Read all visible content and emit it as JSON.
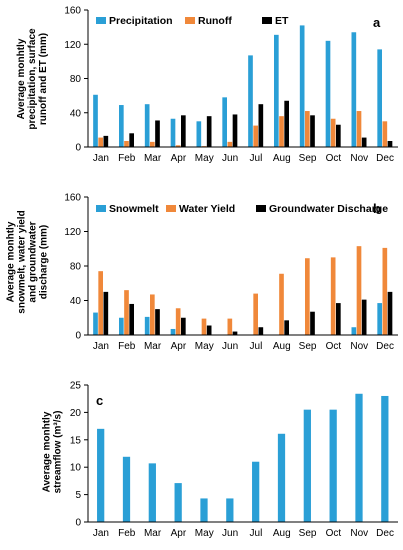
{
  "chart_data": [
    {
      "type": "bar",
      "panel_label": "a",
      "ylabel_lines": [
        "Average monhtly",
        "precipitation, surface",
        "runoff and ET (mm)"
      ],
      "categories": [
        "Jan",
        "Feb",
        "Mar",
        "Apr",
        "May",
        "Jun",
        "Jul",
        "Aug",
        "Sep",
        "Oct",
        "Nov",
        "Dec"
      ],
      "ylim": [
        0,
        160
      ],
      "yticks": [
        0,
        40,
        80,
        120,
        160
      ],
      "legend_position": "top-left",
      "series": [
        {
          "name": "Precipitation",
          "color": "#2a9fd6",
          "values": [
            61,
            49,
            50,
            33,
            30,
            58,
            107,
            131,
            142,
            124,
            134,
            114
          ]
        },
        {
          "name": "Runoff",
          "color": "#f0883a",
          "values": [
            11,
            7,
            6,
            2,
            1,
            6,
            25,
            36,
            42,
            33,
            42,
            30
          ]
        },
        {
          "name": "ET",
          "color": "#000000",
          "values": [
            13,
            16,
            31,
            37,
            36,
            38,
            50,
            54,
            37,
            26,
            11,
            7
          ]
        }
      ]
    },
    {
      "type": "bar",
      "panel_label": "b",
      "ylabel_lines": [
        "Average monhtly",
        "snowmelt, water yield",
        "and groundwater",
        "discharge (mm)"
      ],
      "categories": [
        "Jan",
        "Feb",
        "Mar",
        "Apr",
        "May",
        "Jun",
        "Jul",
        "Aug",
        "Sep",
        "Oct",
        "Nov",
        "Dec"
      ],
      "ylim": [
        0,
        160
      ],
      "yticks": [
        0,
        40,
        80,
        120,
        160
      ],
      "legend_position": "top-left",
      "series": [
        {
          "name": "Snowmelt",
          "color": "#2a9fd6",
          "values": [
            26,
            20,
            21,
            7,
            0,
            0,
            0,
            0,
            0,
            0,
            9,
            37
          ]
        },
        {
          "name": "Water Yield",
          "color": "#f0883a",
          "values": [
            74,
            52,
            47,
            31,
            19,
            19,
            48,
            71,
            89,
            90,
            103,
            101
          ]
        },
        {
          "name": "Groundwater Discharge",
          "color": "#000000",
          "values": [
            50,
            36,
            30,
            20,
            11,
            4,
            9,
            17,
            27,
            37,
            41,
            50
          ]
        }
      ]
    },
    {
      "type": "bar",
      "panel_label": "c",
      "ylabel_lines": [
        "Average monhtly",
        "streamflow (m³/s)"
      ],
      "categories": [
        "Jan",
        "Feb",
        "Mar",
        "Apr",
        "May",
        "Jun",
        "Jul",
        "Aug",
        "Sep",
        "Oct",
        "Nov",
        "Dec"
      ],
      "ylim": [
        0,
        25
      ],
      "yticks": [
        0,
        5,
        10,
        15,
        20,
        25
      ],
      "series": [
        {
          "color": "#2a9fd6",
          "values": [
            17.0,
            11.9,
            10.7,
            7.1,
            4.3,
            4.3,
            11.0,
            16.1,
            20.5,
            20.5,
            23.4,
            23.0
          ]
        }
      ]
    }
  ]
}
